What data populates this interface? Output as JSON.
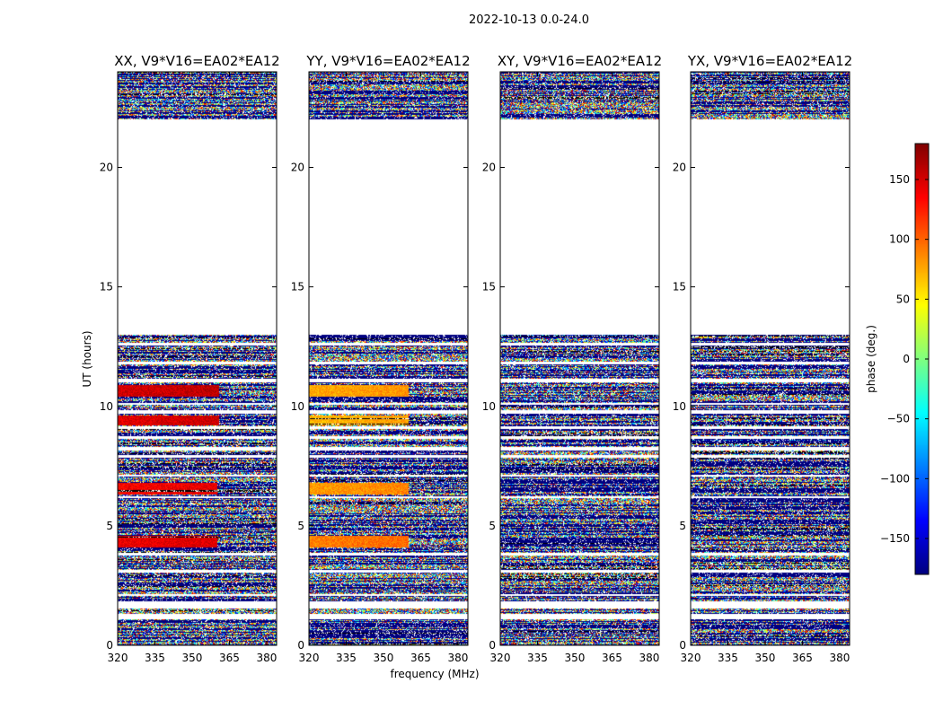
{
  "figure": {
    "suptitle": "2022-10-13 0.0-24.0",
    "xlabel": "frequency (MHz)",
    "ylabel": "UT (hours)"
  },
  "colorbar": {
    "label": "phase (deg.)",
    "range": [
      -180,
      180
    ],
    "ticks": [
      150,
      100,
      50,
      0,
      -50,
      -100,
      -150
    ],
    "tick_labels": [
      "150",
      "100",
      "50",
      "0",
      "−50",
      "−100",
      "−150"
    ],
    "colormap": "jet"
  },
  "chart_data": [
    {
      "type": "heatmap",
      "title": "XX, V9*V16=EA02*EA12",
      "xlabel": "frequency (MHz)",
      "ylabel": "UT (hours)",
      "xlim": [
        320,
        384
      ],
      "ylim": [
        0,
        24
      ],
      "xticks": [
        320,
        335,
        350,
        365,
        380
      ],
      "xtick_labels": [
        "320",
        "335",
        "350",
        "365",
        "380"
      ],
      "yticks": [
        0,
        5,
        10,
        15,
        20
      ],
      "ytick_labels": [
        "0",
        "5",
        "10",
        "15",
        "20"
      ],
      "value": "phase (deg.)",
      "coherent_bands": [
        {
          "ut": [
            10.4,
            10.9
          ],
          "freq_end": 361,
          "phase": 150
        },
        {
          "ut": [
            9.2,
            9.6
          ],
          "freq_end": 361,
          "phase": 145
        },
        {
          "ut": [
            6.3,
            6.8
          ],
          "freq_end": 360,
          "phase": 135
        },
        {
          "ut": [
            4.1,
            4.6
          ],
          "freq_end": 360,
          "phase": 140
        }
      ]
    },
    {
      "type": "heatmap",
      "title": "YY, V9*V16=EA02*EA12",
      "xlabel": "frequency (MHz)",
      "ylabel": "UT (hours)",
      "xlim": [
        320,
        384
      ],
      "ylim": [
        0,
        24
      ],
      "xticks": [
        320,
        335,
        350,
        365,
        380
      ],
      "xtick_labels": [
        "320",
        "335",
        "350",
        "365",
        "380"
      ],
      "yticks": [
        0,
        5,
        10,
        15,
        20
      ],
      "ytick_labels": [
        "0",
        "5",
        "10",
        "15",
        "20"
      ],
      "value": "phase (deg.)",
      "coherent_bands": [
        {
          "ut": [
            10.4,
            10.9
          ],
          "freq_end": 360,
          "phase": 75
        },
        {
          "ut": [
            9.2,
            9.6
          ],
          "freq_end": 360,
          "phase": 70
        },
        {
          "ut": [
            6.3,
            6.8
          ],
          "freq_end": 360,
          "phase": 80
        },
        {
          "ut": [
            4.1,
            4.6
          ],
          "freq_end": 360,
          "phase": 90
        }
      ]
    },
    {
      "type": "heatmap",
      "title": "XY, V9*V16=EA02*EA12",
      "xlabel": "frequency (MHz)",
      "ylabel": "UT (hours)",
      "xlim": [
        320,
        384
      ],
      "ylim": [
        0,
        24
      ],
      "xticks": [
        320,
        335,
        350,
        365,
        380
      ],
      "xtick_labels": [
        "320",
        "335",
        "350",
        "365",
        "380"
      ],
      "yticks": [
        0,
        5,
        10,
        15,
        20
      ],
      "ytick_labels": [
        "0",
        "5",
        "10",
        "15",
        "20"
      ],
      "value": "phase (deg.)",
      "coherent_bands": []
    },
    {
      "type": "heatmap",
      "title": "YX, V9*V16=EA02*EA12",
      "xlabel": "frequency (MHz)",
      "ylabel": "UT (hours)",
      "xlim": [
        320,
        384
      ],
      "ylim": [
        0,
        24
      ],
      "xticks": [
        320,
        335,
        350,
        365,
        380
      ],
      "xtick_labels": [
        "320",
        "335",
        "350",
        "365",
        "380"
      ],
      "yticks": [
        0,
        5,
        10,
        15,
        20
      ],
      "ytick_labels": [
        "0",
        "5",
        "10",
        "15",
        "20"
      ],
      "value": "phase (deg.)",
      "coherent_bands": []
    }
  ],
  "observation": {
    "data_ut_ranges": [
      [
        0,
        13.0
      ],
      [
        22.0,
        24.0
      ]
    ],
    "flagged_ut_ranges": [
      [
        1.1,
        1.3
      ],
      [
        1.55,
        1.85
      ],
      [
        2.05,
        2.15
      ],
      [
        3.05,
        3.15
      ],
      [
        3.75,
        3.85
      ],
      [
        6.15,
        6.25
      ],
      [
        7.05,
        7.15
      ],
      [
        7.85,
        7.95
      ],
      [
        8.15,
        8.3
      ],
      [
        8.65,
        8.75
      ],
      [
        9.05,
        9.15
      ],
      [
        9.7,
        9.85
      ],
      [
        10.05,
        10.15
      ],
      [
        11.0,
        11.15
      ],
      [
        11.75,
        11.85
      ],
      [
        12.55,
        12.65
      ]
    ]
  }
}
